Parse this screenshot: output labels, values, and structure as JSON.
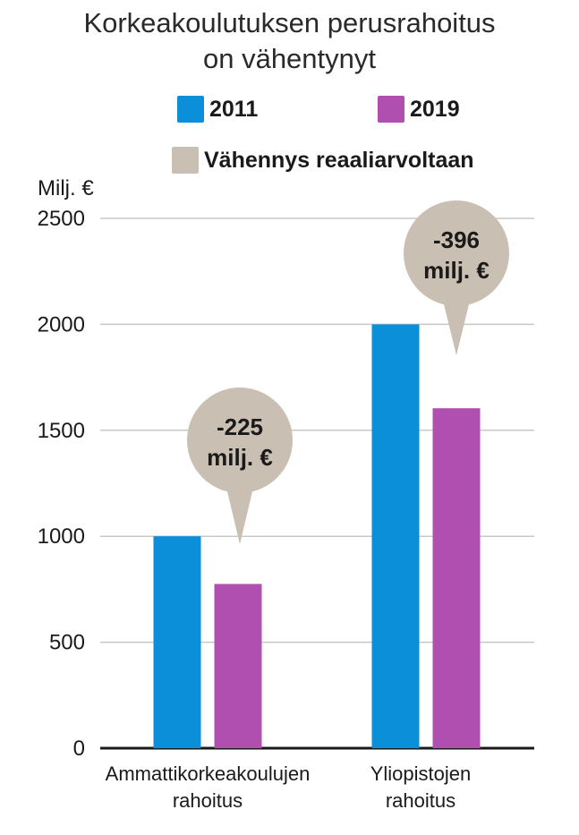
{
  "chart_data": {
    "type": "bar",
    "title_lines": [
      "Korkeakoulutuksen perusrahoitus",
      "on vähentynyt"
    ],
    "ylabel": "Milj. €",
    "ylim": [
      0,
      2500
    ],
    "yticks": [
      "0",
      "500",
      "1000",
      "1500",
      "2000",
      "2500"
    ],
    "grid": true,
    "categories": [
      [
        "Ammattikorkeakoulujen",
        "rahoitus"
      ],
      [
        "Yliopistojen",
        "rahoitus"
      ]
    ],
    "series": [
      {
        "name": "2011",
        "color": "#0a8fd8",
        "values": [
          1000,
          2000
        ]
      },
      {
        "name": "2019",
        "color": "#b04fb0",
        "values": [
          775,
          1604
        ]
      }
    ],
    "legend_extra": {
      "name": "Vähennys reaaliarvoltaan",
      "color": "#c9bfb2"
    },
    "annotations": [
      {
        "category": 0,
        "lines": [
          "-225",
          "milj. €"
        ]
      },
      {
        "category": 1,
        "lines": [
          "-396",
          "milj. €"
        ]
      }
    ]
  }
}
